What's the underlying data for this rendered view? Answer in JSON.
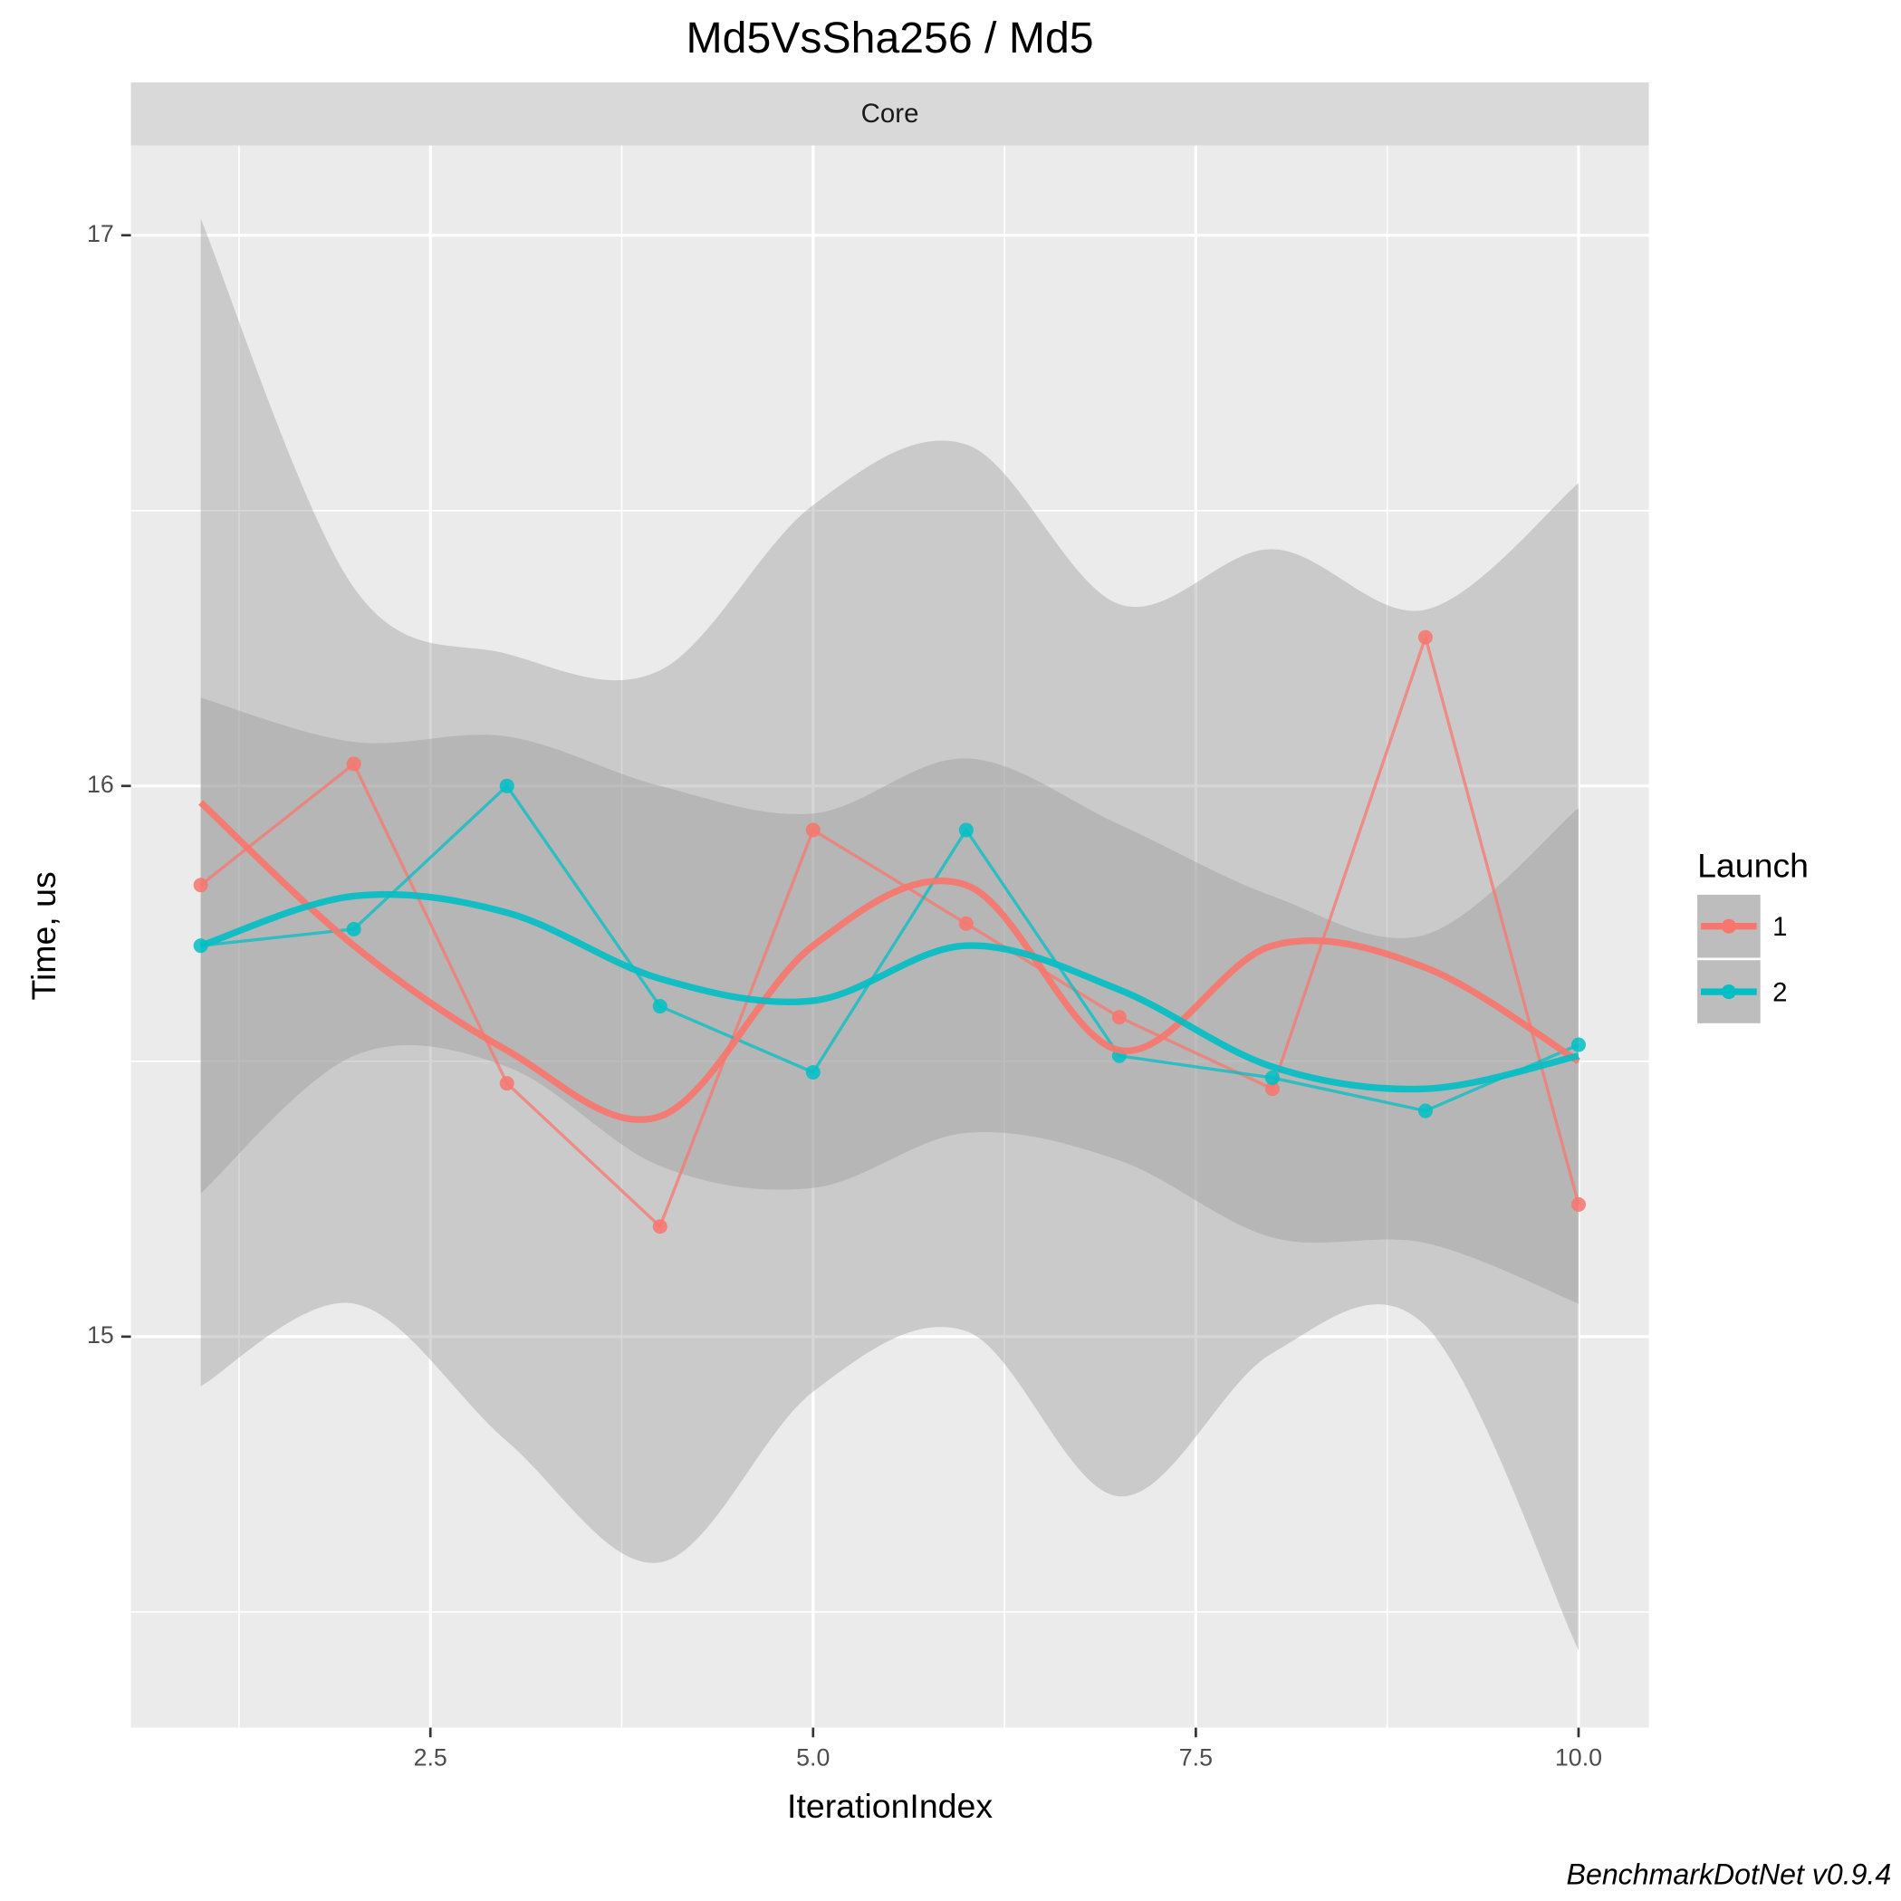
{
  "chart_data": {
    "type": "line",
    "title": "Md5VsSha256 / Md5",
    "facet": "Core",
    "xlabel": "IterationIndex",
    "ylabel": "Time, us",
    "legend_title": "Launch",
    "legend_position": "right",
    "caption": "BenchmarkDotNet v0.9.4",
    "grid": true,
    "x": [
      1,
      2,
      3,
      4,
      5,
      6,
      7,
      8,
      9,
      10
    ],
    "xlim": [
      0.544,
      10.459
    ],
    "ylim": [
      14.29,
      17.163
    ],
    "xticks": [
      {
        "value": 2.5,
        "label": "2.5"
      },
      {
        "value": 5,
        "label": "5.0"
      },
      {
        "value": 7.5,
        "label": "7.5"
      },
      {
        "value": 10,
        "label": "10.0"
      }
    ],
    "yticks": [
      15,
      16,
      17
    ],
    "x_minor_ticks": [
      1.25,
      3.75,
      6.25,
      8.75
    ],
    "y_minor_ticks": [
      14.5,
      15.5,
      16.5
    ],
    "series": [
      {
        "name": "1",
        "color": "#F8766D",
        "values": [
          15.82,
          16.04,
          15.46,
          15.2,
          15.92,
          15.75,
          15.58,
          15.45,
          16.27,
          15.24
        ],
        "smooth": [
          15.97,
          15.71,
          15.52,
          15.4,
          15.71,
          15.82,
          15.52,
          15.71,
          15.67,
          15.5
        ],
        "upper": [
          17.03,
          16.36,
          16.24,
          16.21,
          16.51,
          16.62,
          16.33,
          16.43,
          16.32,
          16.55
        ],
        "lower": [
          14.91,
          15.06,
          14.81,
          14.59,
          14.9,
          15.01,
          14.71,
          14.97,
          15.02,
          14.43
        ]
      },
      {
        "name": "2",
        "color": "#00BFC4",
        "values": [
          15.71,
          15.74,
          16.0,
          15.6,
          15.48,
          15.92,
          15.51,
          15.47,
          15.41,
          15.53
        ],
        "smooth": [
          15.71,
          15.8,
          15.77,
          15.65,
          15.61,
          15.71,
          15.63,
          15.49,
          15.45,
          15.51
        ],
        "upper": [
          16.16,
          16.08,
          16.09,
          16.0,
          15.95,
          16.05,
          15.93,
          15.8,
          15.73,
          15.96
        ],
        "lower": [
          15.26,
          15.51,
          15.49,
          15.31,
          15.27,
          15.37,
          15.32,
          15.18,
          15.17,
          15.06
        ]
      }
    ]
  }
}
